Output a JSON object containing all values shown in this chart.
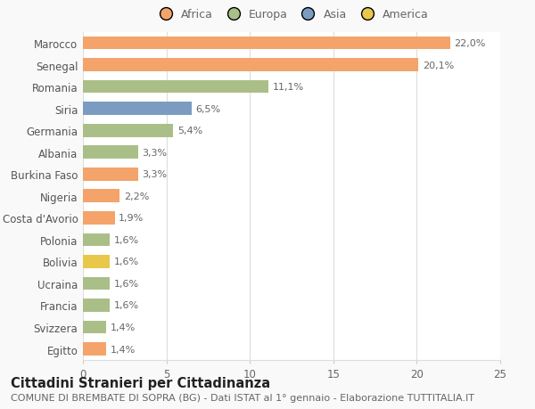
{
  "categories": [
    "Marocco",
    "Senegal",
    "Romania",
    "Siria",
    "Germania",
    "Albania",
    "Burkina Faso",
    "Nigeria",
    "Costa d'Avorio",
    "Polonia",
    "Bolivia",
    "Ucraina",
    "Francia",
    "Svizzera",
    "Egitto"
  ],
  "values": [
    22.0,
    20.1,
    11.1,
    6.5,
    5.4,
    3.3,
    3.3,
    2.2,
    1.9,
    1.6,
    1.6,
    1.6,
    1.6,
    1.4,
    1.4
  ],
  "labels": [
    "22,0%",
    "20,1%",
    "11,1%",
    "6,5%",
    "5,4%",
    "3,3%",
    "3,3%",
    "2,2%",
    "1,9%",
    "1,6%",
    "1,6%",
    "1,6%",
    "1,6%",
    "1,4%",
    "1,4%"
  ],
  "colors": [
    "#F4A46A",
    "#F4A46A",
    "#AABF88",
    "#7B9CC0",
    "#AABF88",
    "#AABF88",
    "#F4A46A",
    "#F4A46A",
    "#F4A46A",
    "#AABF88",
    "#E8C84A",
    "#AABF88",
    "#AABF88",
    "#AABF88",
    "#F4A46A"
  ],
  "legend_labels": [
    "Africa",
    "Europa",
    "Asia",
    "America"
  ],
  "legend_colors": [
    "#F4A46A",
    "#AABF88",
    "#7B9CC0",
    "#E8C84A"
  ],
  "title": "Cittadini Stranieri per Cittadinanza",
  "subtitle": "COMUNE DI BREMBATE DI SOPRA (BG) - Dati ISTAT al 1° gennaio - Elaborazione TUTTITALIA.IT",
  "xlim": [
    0,
    25
  ],
  "xticks": [
    0,
    5,
    10,
    15,
    20,
    25
  ],
  "background_color": "#f9f9f9",
  "bar_background": "#ffffff",
  "grid_color": "#dddddd",
  "title_fontsize": 10.5,
  "subtitle_fontsize": 8,
  "label_fontsize": 8,
  "tick_fontsize": 8.5,
  "bar_height": 0.6
}
